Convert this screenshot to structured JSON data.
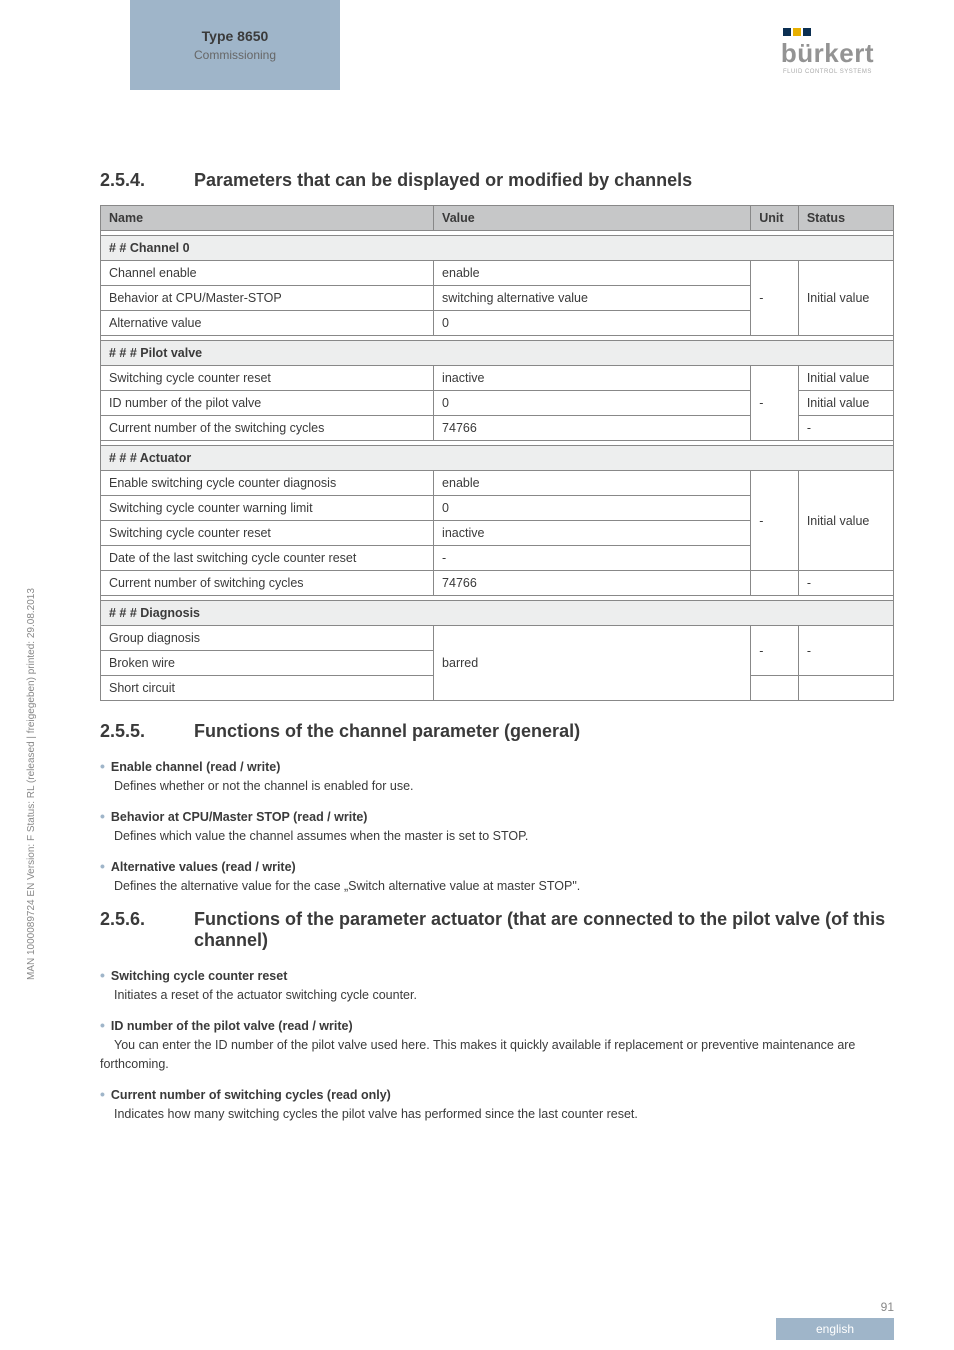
{
  "header": {
    "type_label": "Type 8650",
    "subtitle": "Commissioning",
    "logo_text": "bürkert",
    "logo_sub": "FLUID CONTROL SYSTEMS",
    "logo_colors": [
      "#0b2f52",
      "#e8b000",
      "#0b2f52"
    ]
  },
  "side_text": "MAN 1000089724 EN Version: F Status: RL (released | freigegeben) printed: 29.08.2013",
  "section_254": {
    "num": "2.5.4.",
    "title": "Parameters that can be displayed or modified by channels",
    "table": {
      "headers": [
        "Name",
        "Value",
        "Unit",
        "Status"
      ],
      "groups": [
        {
          "header": "# # Channel 0",
          "rows": [
            {
              "name": "Channel enable",
              "value": "enable",
              "unit": "",
              "status": ""
            },
            {
              "name": "Behavior at CPU/Master-STOP",
              "value": "switching alternative value",
              "unit": "-",
              "status": "Initial value"
            },
            {
              "name": "Alternative value",
              "value": "0",
              "unit": "",
              "status": ""
            }
          ],
          "merge_unit_status": true
        },
        {
          "header": "# # # Pilot valve",
          "rows": [
            {
              "name": "Switching cycle counter reset",
              "value": "inactive",
              "unit": "",
              "status": "Initial value"
            },
            {
              "name": "ID number of the pilot valve",
              "value": "0",
              "unit": "-",
              "status": "Initial value"
            },
            {
              "name": "Current number of the switching cycles",
              "value": "74766",
              "unit": "",
              "status": "-"
            }
          ],
          "merge_unit_status": false
        },
        {
          "header": "# # # Actuator",
          "rows": [
            {
              "name": "Enable switching cycle counter diagnosis",
              "value": "enable",
              "unit": "",
              "status": ""
            },
            {
              "name": "Switching cycle counter warning limit",
              "value": "0",
              "unit": "",
              "status": ""
            },
            {
              "name": "Switching cycle counter reset",
              "value": "inactive",
              "unit": "-",
              "status": "Initial value"
            },
            {
              "name": "Date of the last switching cycle counter reset",
              "value": "-",
              "unit": "",
              "status": ""
            },
            {
              "name": "Current number of switching cycles",
              "value": "74766",
              "unit": "",
              "status": "-"
            }
          ]
        },
        {
          "header": "# # # Diagnosis",
          "rows": [
            {
              "name": "Group diagnosis",
              "value": "",
              "unit": "-",
              "status": "-"
            },
            {
              "name": "Broken wire",
              "value": "barred",
              "unit": "",
              "status": ""
            },
            {
              "name": "Short circuit",
              "value": "",
              "unit": "",
              "status": ""
            }
          ]
        }
      ]
    }
  },
  "section_255": {
    "num": "2.5.5.",
    "title": "Functions of the channel parameter (general)",
    "items": [
      {
        "title": "Enable channel (read / write)",
        "desc": "Defines whether or not the channel is enabled for use."
      },
      {
        "title": "Behavior at CPU/Master STOP (read / write)",
        "desc": "Defines which value the channel assumes when the master is set to STOP."
      },
      {
        "title": "Alternative values (read / write)",
        "desc": "Defines the alternative value for the case „Switch alternative value at master STOP\"."
      }
    ]
  },
  "section_256": {
    "num": "2.5.6.",
    "title": "Functions of the parameter actuator (that are connected to the pilot valve (of this channel)",
    "items": [
      {
        "title": "Switching cycle counter reset",
        "desc": "Initiates a reset of the actuator switching cycle counter."
      },
      {
        "title": "ID number of the pilot valve (read / write)",
        "desc": "You can enter the ID number of the pilot valve used here. This makes it quickly available if replacement or preventive maintenance are forthcoming."
      },
      {
        "title": "Current number of switching cycles (read only)",
        "desc": "Indicates how many switching cycles the pilot valve has performed since the last counter reset."
      }
    ]
  },
  "footer": {
    "page": "91",
    "lang": "english"
  }
}
